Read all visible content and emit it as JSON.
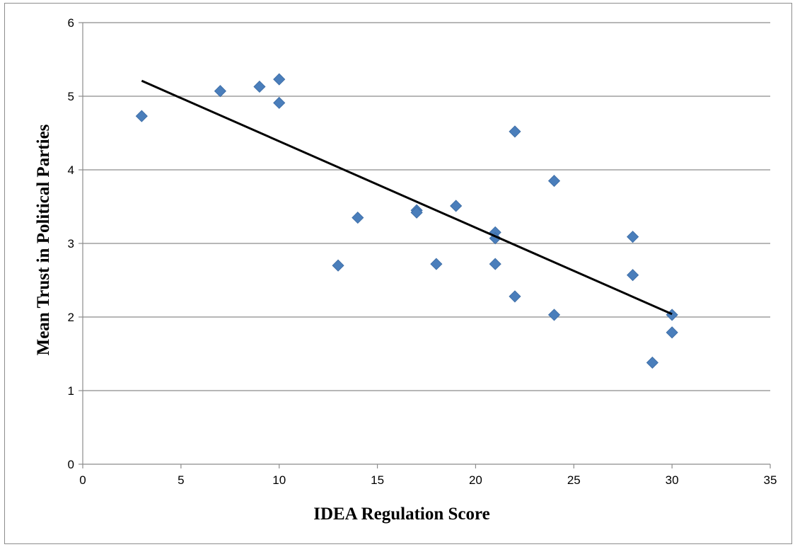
{
  "chart_data": {
    "type": "scatter",
    "title": "",
    "xlabel": "IDEA Regulation Score",
    "ylabel": "Mean Trust in Political Parties",
    "xlim": [
      0,
      35
    ],
    "ylim": [
      0,
      6
    ],
    "xticks": [
      0,
      5,
      10,
      15,
      20,
      25,
      30,
      35
    ],
    "yticks": [
      0,
      1,
      2,
      3,
      4,
      5,
      6
    ],
    "grid": "horizontal",
    "legend": "none",
    "points": [
      {
        "x": 3,
        "y": 4.73
      },
      {
        "x": 7,
        "y": 5.07
      },
      {
        "x": 9,
        "y": 5.13
      },
      {
        "x": 10,
        "y": 5.23
      },
      {
        "x": 10,
        "y": 4.91
      },
      {
        "x": 13,
        "y": 2.7
      },
      {
        "x": 14,
        "y": 3.35
      },
      {
        "x": 17,
        "y": 3.45
      },
      {
        "x": 17,
        "y": 3.42
      },
      {
        "x": 18,
        "y": 2.72
      },
      {
        "x": 19,
        "y": 3.51
      },
      {
        "x": 21,
        "y": 3.15
      },
      {
        "x": 21,
        "y": 3.07
      },
      {
        "x": 21,
        "y": 2.72
      },
      {
        "x": 22,
        "y": 4.52
      },
      {
        "x": 22,
        "y": 2.28
      },
      {
        "x": 24,
        "y": 3.85
      },
      {
        "x": 24,
        "y": 2.03
      },
      {
        "x": 28,
        "y": 3.09
      },
      {
        "x": 28,
        "y": 2.57
      },
      {
        "x": 29,
        "y": 1.38
      },
      {
        "x": 30,
        "y": 2.03
      },
      {
        "x": 30,
        "y": 1.79
      }
    ],
    "trendline": {
      "type": "linear",
      "start": {
        "x": 3,
        "y": 5.21
      },
      "end": {
        "x": 30,
        "y": 2.04
      }
    },
    "colors": {
      "marker": "#4a7ebb",
      "marker_edge": "#3a6aa3",
      "trendline": "#000000",
      "gridline": "#8c8c8c",
      "axis": "#8c8c8c"
    }
  }
}
